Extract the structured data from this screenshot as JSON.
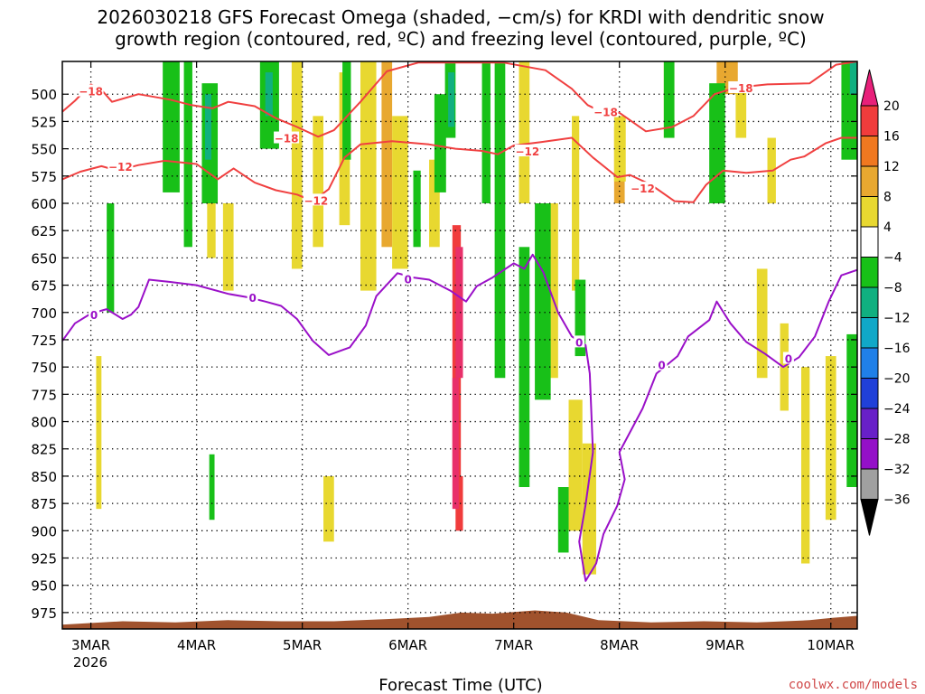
{
  "chart_data": {
    "type": "time-height cross section",
    "title_line1": "2026030218 GFS Forecast Omega (shaded, −cm/s) for KRDI with dendritic snow",
    "title_line2": "growth region (contoured, red, ºC) and freezing level (contoured, purple, ºC)",
    "xlabel": "Forecast Time (UTC)",
    "xlabel_year": "2026",
    "credit": "coolwx.com/models",
    "x_ticks": [
      {
        "label": "3MAR",
        "day": 0
      },
      {
        "label": "4MAR",
        "day": 1
      },
      {
        "label": "5MAR",
        "day": 2
      },
      {
        "label": "6MAR",
        "day": 3
      },
      {
        "label": "7MAR",
        "day": 4
      },
      {
        "label": "8MAR",
        "day": 5
      },
      {
        "label": "9MAR",
        "day": 6
      },
      {
        "label": "10MAR",
        "day": 7
      }
    ],
    "x_range_days": [
      -0.27,
      7.25
    ],
    "y_ticks_hpa": [
      500,
      525,
      550,
      575,
      600,
      625,
      650,
      675,
      700,
      725,
      750,
      775,
      800,
      825,
      850,
      875,
      900,
      925,
      950,
      975
    ],
    "y_range_hpa": [
      470,
      990
    ],
    "colorbar": {
      "labels": [
        "20",
        "16",
        "12",
        "8",
        "4",
        "−4",
        "−8",
        "−12",
        "−16",
        "−20",
        "−24",
        "−28",
        "−32",
        "−36"
      ],
      "colors": [
        "#e8306a",
        "#f03c3c",
        "#f07820",
        "#e8a830",
        "#e8d830",
        "#ffffff",
        "#18c018",
        "#10b080",
        "#10a8c8",
        "#2080e8",
        "#2040d8",
        "#6820c8",
        "#9410c8",
        "#a0a0a0"
      ],
      "top_cap": "#e8207a",
      "bottom_cap": "#000000"
    },
    "contours": [
      {
        "name": "red -18C",
        "color": "#f04040",
        "label": "−18",
        "label_points": [
          [
            0.0,
            497
          ],
          [
            1.85,
            540
          ],
          [
            4.87,
            516
          ],
          [
            6.15,
            494
          ]
        ],
        "points": [
          [
            -0.27,
            516
          ],
          [
            -0.15,
            506
          ],
          [
            0.0,
            491
          ],
          [
            0.1,
            496
          ],
          [
            0.2,
            507
          ],
          [
            0.45,
            500
          ],
          [
            0.75,
            505
          ],
          [
            0.95,
            510
          ],
          [
            1.15,
            513
          ],
          [
            1.3,
            507
          ],
          [
            1.55,
            511
          ],
          [
            1.75,
            522
          ],
          [
            1.95,
            530
          ],
          [
            2.15,
            539
          ],
          [
            2.3,
            533
          ],
          [
            2.55,
            507
          ],
          [
            2.8,
            479
          ],
          [
            3.1,
            471
          ],
          [
            3.5,
            471
          ],
          [
            3.9,
            471
          ],
          [
            4.3,
            478
          ],
          [
            4.55,
            495
          ],
          [
            4.7,
            510
          ],
          [
            4.85,
            517
          ],
          [
            5.0,
            517
          ],
          [
            5.25,
            534
          ],
          [
            5.5,
            530
          ],
          [
            5.7,
            520
          ],
          [
            5.9,
            500
          ],
          [
            6.1,
            494
          ],
          [
            6.4,
            491
          ],
          [
            6.8,
            490
          ],
          [
            7.05,
            473
          ],
          [
            7.25,
            470
          ]
        ]
      },
      {
        "name": "red -12C",
        "color": "#f04040",
        "label": "−12",
        "label_points": [
          [
            0.28,
            566
          ],
          [
            2.13,
            597
          ],
          [
            4.13,
            552
          ],
          [
            5.22,
            586
          ]
        ],
        "points": [
          [
            -0.27,
            578
          ],
          [
            -0.1,
            571
          ],
          [
            0.1,
            566
          ],
          [
            0.25,
            570
          ],
          [
            0.45,
            565
          ],
          [
            0.7,
            561
          ],
          [
            1.0,
            564
          ],
          [
            1.2,
            578
          ],
          [
            1.35,
            568
          ],
          [
            1.55,
            581
          ],
          [
            1.75,
            588
          ],
          [
            1.95,
            592
          ],
          [
            2.1,
            598
          ],
          [
            2.25,
            587
          ],
          [
            2.4,
            558
          ],
          [
            2.55,
            546
          ],
          [
            2.85,
            543
          ],
          [
            3.2,
            546
          ],
          [
            3.45,
            550
          ],
          [
            3.7,
            552
          ],
          [
            3.85,
            555
          ],
          [
            4.0,
            547
          ],
          [
            4.25,
            544
          ],
          [
            4.55,
            540
          ],
          [
            4.75,
            558
          ],
          [
            4.98,
            576
          ],
          [
            5.1,
            574
          ],
          [
            5.3,
            583
          ],
          [
            5.52,
            598
          ],
          [
            5.7,
            599
          ],
          [
            5.82,
            583
          ],
          [
            5.98,
            570
          ],
          [
            6.2,
            572
          ],
          [
            6.45,
            570
          ],
          [
            6.62,
            560
          ],
          [
            6.75,
            557
          ],
          [
            6.95,
            545
          ],
          [
            7.1,
            540
          ],
          [
            7.25,
            540
          ]
        ]
      },
      {
        "name": "purple 0C",
        "color": "#9a10c8",
        "label": "0",
        "label_points": [
          [
            0.03,
            702
          ],
          [
            1.53,
            686
          ],
          [
            3.0,
            669
          ],
          [
            4.62,
            727
          ],
          [
            5.4,
            748
          ],
          [
            6.6,
            742
          ]
        ],
        "points": [
          [
            -0.27,
            726
          ],
          [
            -0.15,
            710
          ],
          [
            0.0,
            701
          ],
          [
            0.15,
            697
          ],
          [
            0.3,
            706
          ],
          [
            0.38,
            702
          ],
          [
            0.45,
            695
          ],
          [
            0.55,
            670
          ],
          [
            0.75,
            672
          ],
          [
            1.0,
            675
          ],
          [
            1.3,
            683
          ],
          [
            1.48,
            686
          ],
          [
            1.65,
            690
          ],
          [
            1.8,
            694
          ],
          [
            1.95,
            706
          ],
          [
            2.1,
            726
          ],
          [
            2.25,
            739
          ],
          [
            2.45,
            732
          ],
          [
            2.6,
            712
          ],
          [
            2.7,
            685
          ],
          [
            2.9,
            664
          ],
          [
            3.05,
            668
          ],
          [
            3.2,
            670
          ],
          [
            3.4,
            680
          ],
          [
            3.55,
            690
          ],
          [
            3.65,
            676
          ],
          [
            3.8,
            668
          ],
          [
            4.0,
            655
          ],
          [
            4.1,
            660
          ],
          [
            4.18,
            647
          ],
          [
            4.28,
            663
          ],
          [
            4.42,
            700
          ],
          [
            4.55,
            722
          ],
          [
            4.68,
            730
          ],
          [
            4.72,
            756
          ],
          [
            4.75,
            828
          ],
          [
            4.68,
            876
          ],
          [
            4.62,
            910
          ],
          [
            4.68,
            946
          ],
          [
            4.78,
            930
          ],
          [
            4.85,
            903
          ],
          [
            4.98,
            877
          ],
          [
            5.05,
            853
          ],
          [
            5.0,
            828
          ],
          [
            5.22,
            788
          ],
          [
            5.35,
            756
          ],
          [
            5.55,
            740
          ],
          [
            5.65,
            722
          ],
          [
            5.85,
            707
          ],
          [
            5.92,
            690
          ],
          [
            6.05,
            710
          ],
          [
            6.2,
            727
          ],
          [
            6.38,
            738
          ],
          [
            6.55,
            750
          ],
          [
            6.7,
            741
          ],
          [
            6.85,
            722
          ],
          [
            6.98,
            690
          ],
          [
            7.1,
            666
          ],
          [
            7.25,
            661
          ]
        ]
      }
    ],
    "omega_fill": [
      {
        "band": "8",
        "rects": [
          [
            2.75,
            2.85,
            470,
            640
          ],
          [
            1.9,
            1.98,
            470,
            560
          ],
          [
            4.95,
            5.05,
            530,
            600
          ],
          [
            5.92,
            6.12,
            470,
            500
          ]
        ]
      },
      {
        "band": "4",
        "rects": [
          [
            1.9,
            2.0,
            470,
            660
          ],
          [
            2.1,
            2.2,
            520,
            640
          ],
          [
            2.35,
            2.45,
            480,
            620
          ],
          [
            2.55,
            2.7,
            470,
            680
          ],
          [
            2.85,
            3.0,
            520,
            660
          ],
          [
            3.2,
            3.3,
            560,
            640
          ],
          [
            4.05,
            4.15,
            470,
            600
          ],
          [
            4.3,
            4.42,
            600,
            760
          ],
          [
            4.52,
            4.65,
            780,
            900
          ],
          [
            4.65,
            4.78,
            820,
            940
          ],
          [
            4.95,
            5.06,
            520,
            580
          ],
          [
            5.42,
            5.52,
            470,
            540
          ],
          [
            6.1,
            6.2,
            490,
            540
          ],
          [
            6.4,
            6.48,
            540,
            600
          ],
          [
            6.3,
            6.4,
            660,
            760
          ],
          [
            6.52,
            6.6,
            710,
            790
          ],
          [
            6.95,
            7.05,
            740,
            890
          ],
          [
            6.72,
            6.8,
            750,
            930
          ],
          [
            0.05,
            0.1,
            740,
            880
          ],
          [
            1.1,
            1.18,
            560,
            650
          ],
          [
            1.25,
            1.35,
            600,
            680
          ],
          [
            2.2,
            2.3,
            850,
            910
          ],
          [
            4.55,
            4.62,
            520,
            680
          ]
        ]
      },
      {
        "band": "-8",
        "rects": [
          [
            0.68,
            0.84,
            470,
            590
          ],
          [
            0.88,
            0.96,
            470,
            640
          ],
          [
            1.05,
            1.2,
            490,
            600
          ],
          [
            1.6,
            1.78,
            470,
            550
          ],
          [
            2.38,
            2.46,
            470,
            560
          ],
          [
            3.25,
            3.36,
            500,
            590
          ],
          [
            3.35,
            3.45,
            470,
            540
          ],
          [
            3.7,
            3.78,
            470,
            600
          ],
          [
            3.82,
            3.92,
            470,
            760
          ],
          [
            4.05,
            4.15,
            640,
            860
          ],
          [
            4.2,
            4.35,
            600,
            780
          ],
          [
            4.42,
            4.52,
            860,
            920
          ],
          [
            4.58,
            4.68,
            670,
            740
          ],
          [
            5.42,
            5.52,
            470,
            540
          ],
          [
            5.85,
            6.0,
            490,
            600
          ],
          [
            7.1,
            7.25,
            470,
            560
          ],
          [
            7.15,
            7.25,
            720,
            860
          ],
          [
            0.15,
            0.22,
            600,
            700
          ],
          [
            1.12,
            1.17,
            830,
            890
          ],
          [
            3.05,
            3.12,
            570,
            640
          ]
        ]
      },
      {
        "band": "-12",
        "rects": [
          [
            1.08,
            1.14,
            500,
            560
          ],
          [
            1.65,
            1.72,
            480,
            520
          ],
          [
            3.38,
            3.44,
            480,
            530
          ],
          [
            7.18,
            7.25,
            470,
            500
          ]
        ]
      },
      {
        "band": "16",
        "rects": [
          [
            3.42,
            3.5,
            620,
            850
          ],
          [
            3.45,
            3.52,
            850,
            900
          ]
        ]
      },
      {
        "band": "20",
        "rects": [
          [
            3.45,
            3.52,
            640,
            760
          ],
          [
            3.42,
            3.48,
            760,
            880
          ]
        ]
      }
    ],
    "terrain": {
      "color": "#a0522d",
      "surface_hpa": [
        [
          -0.27,
          986
        ],
        [
          0.3,
          983
        ],
        [
          0.8,
          984
        ],
        [
          1.3,
          982
        ],
        [
          1.8,
          983
        ],
        [
          2.3,
          983
        ],
        [
          2.8,
          981
        ],
        [
          3.2,
          979
        ],
        [
          3.5,
          975
        ],
        [
          3.8,
          976
        ],
        [
          4.2,
          973
        ],
        [
          4.5,
          975
        ],
        [
          4.8,
          982
        ],
        [
          5.3,
          984
        ],
        [
          5.8,
          983
        ],
        [
          6.3,
          984
        ],
        [
          6.8,
          982
        ],
        [
          7.0,
          980
        ],
        [
          7.25,
          978
        ]
      ]
    }
  }
}
